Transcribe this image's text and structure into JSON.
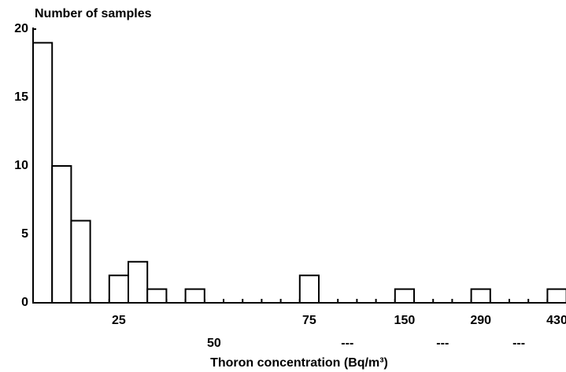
{
  "chart_data": {
    "type": "bar",
    "ylabel": "Number of samples",
    "xlabel": "Thoron concentration (Bq/m³)",
    "categories": [
      null,
      null,
      null,
      null,
      "25",
      null,
      null,
      null,
      null,
      "50",
      null,
      null,
      null,
      null,
      "75",
      null,
      "---",
      null,
      null,
      "150",
      null,
      "---",
      null,
      "290",
      null,
      "---",
      null,
      "430"
    ],
    "values": [
      19,
      10,
      6,
      0,
      2,
      3,
      1,
      0,
      1,
      0,
      0,
      0,
      0,
      0,
      2,
      0,
      0,
      0,
      0,
      1,
      0,
      0,
      0,
      1,
      0,
      0,
      0,
      1
    ],
    "color": "#ffffff",
    "ylim": [
      0,
      20
    ],
    "yticks": [
      0,
      5,
      10,
      15,
      20
    ]
  }
}
